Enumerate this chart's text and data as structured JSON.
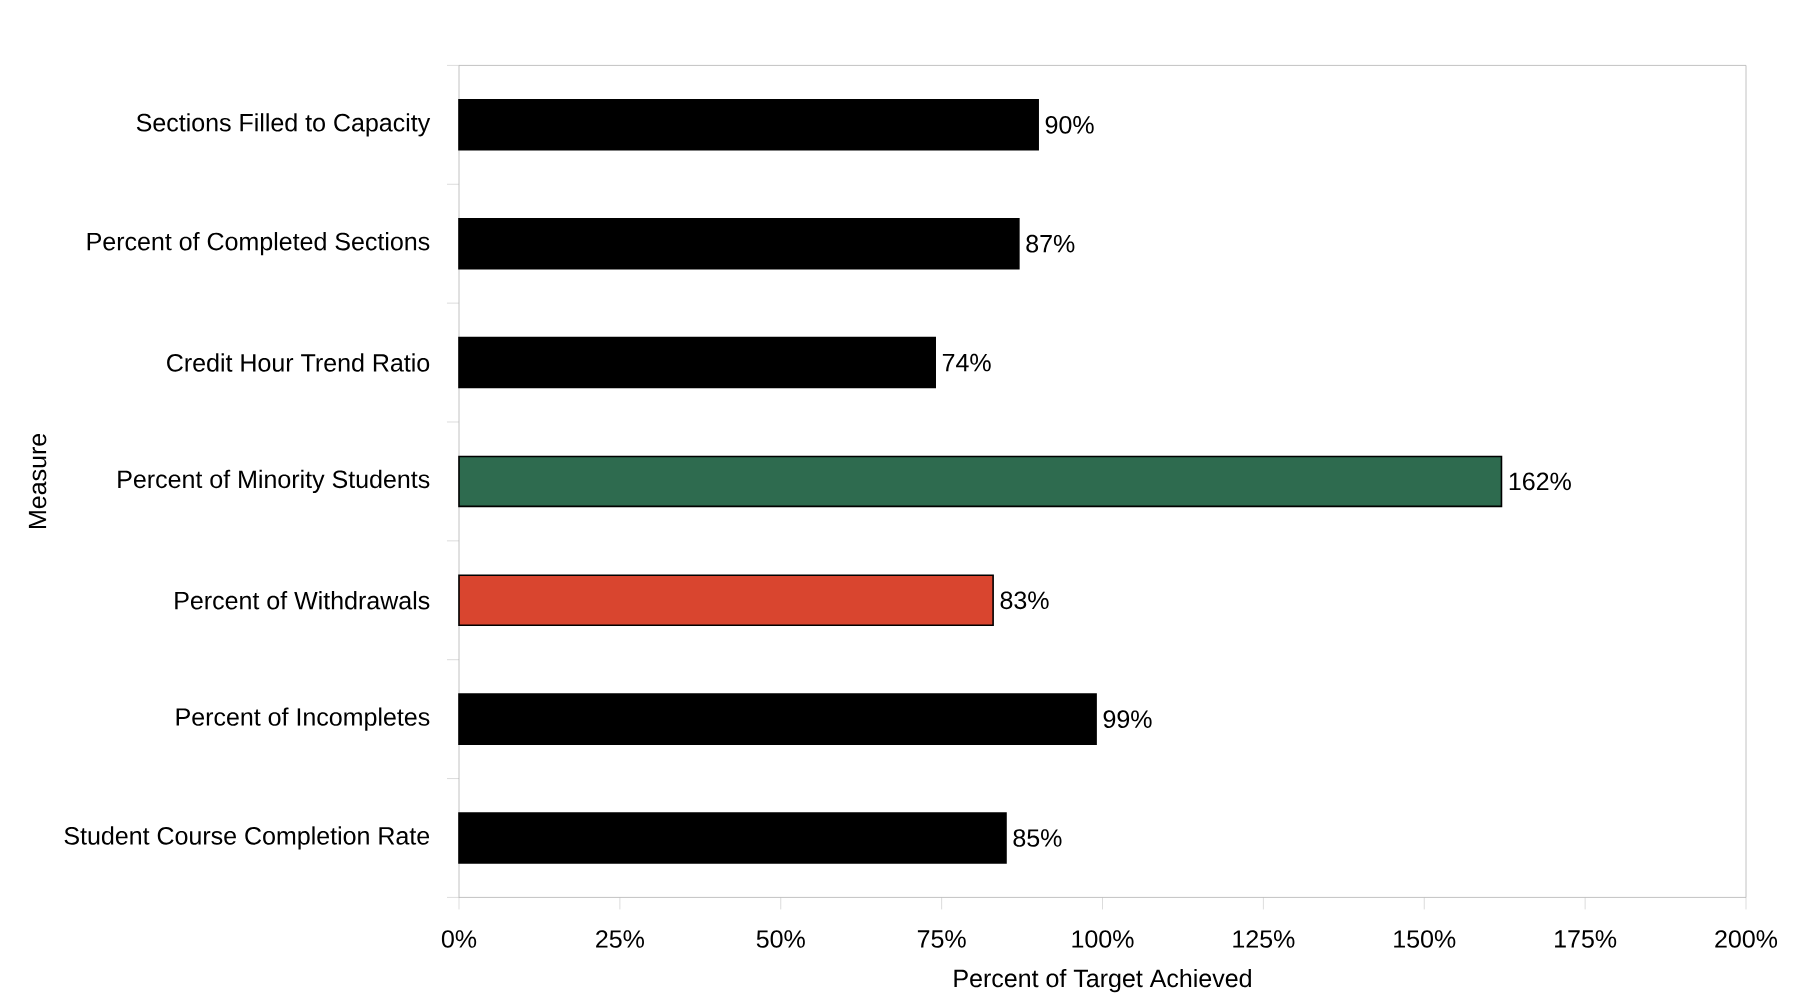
{
  "chart_data": {
    "type": "bar",
    "orientation": "horizontal",
    "xlabel": "Percent of Target Achieved",
    "ylabel": "Measure",
    "categories": [
      "Sections Filled to Capacity",
      "Percent of Completed Sections",
      "Credit Hour Trend Ratio",
      "Percent of Minority Students",
      "Percent of Withdrawals",
      "Percent of Incompletes",
      "Student Course Completion Rate"
    ],
    "values": [
      90,
      87,
      74,
      162,
      83,
      99,
      85
    ],
    "colors": [
      "#000000",
      "#000000",
      "#000000",
      "#2e6b4f",
      "#d9452f",
      "#000000",
      "#000000"
    ],
    "value_labels": [
      "90%",
      "87%",
      "74%",
      "162%",
      "83%",
      "99%",
      "85%"
    ],
    "xlim": [
      0,
      200
    ],
    "xticks": [
      {
        "value": 0,
        "label": "0%"
      },
      {
        "value": 25,
        "label": "25%"
      },
      {
        "value": 50,
        "label": "50%"
      },
      {
        "value": 75,
        "label": "75%"
      },
      {
        "value": 100,
        "label": "100%"
      },
      {
        "value": 125,
        "label": "125%"
      },
      {
        "value": 150,
        "label": "150%"
      },
      {
        "value": 175,
        "label": "175%"
      },
      {
        "value": 200,
        "label": "200%"
      }
    ]
  }
}
